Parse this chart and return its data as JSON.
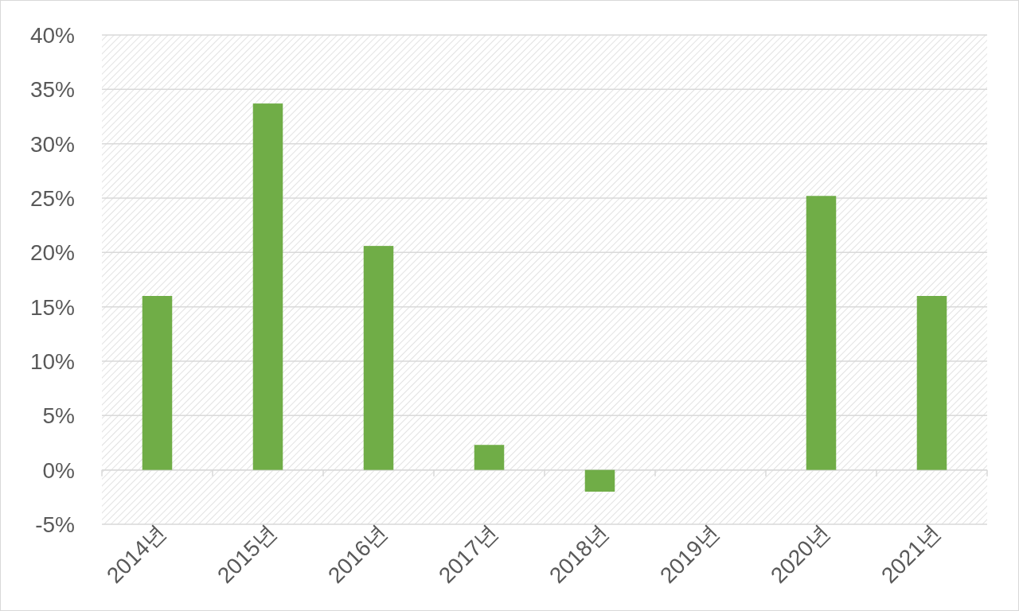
{
  "chart_data": {
    "type": "bar",
    "categories": [
      "2014년",
      "2015년",
      "2016년",
      "2017년",
      "2018년",
      "2019년",
      "2020년",
      "2021년"
    ],
    "series": [
      {
        "color": "#70ad47",
        "values": [
          16.0,
          33.7,
          20.6,
          2.3,
          -2.0,
          0,
          25.2,
          16.0
        ]
      }
    ],
    "ylim": [
      -5,
      40
    ],
    "yticks": [
      {
        "value": -5,
        "label": "-5%"
      },
      {
        "value": 0,
        "label": "0%"
      },
      {
        "value": 5,
        "label": "5%"
      },
      {
        "value": 10,
        "label": "10%"
      },
      {
        "value": 15,
        "label": "15%"
      },
      {
        "value": 20,
        "label": "20%"
      },
      {
        "value": 25,
        "label": "25%"
      },
      {
        "value": 30,
        "label": "30%"
      },
      {
        "value": 35,
        "label": "35%"
      },
      {
        "value": 40,
        "label": "40%"
      }
    ],
    "grid": "y"
  }
}
